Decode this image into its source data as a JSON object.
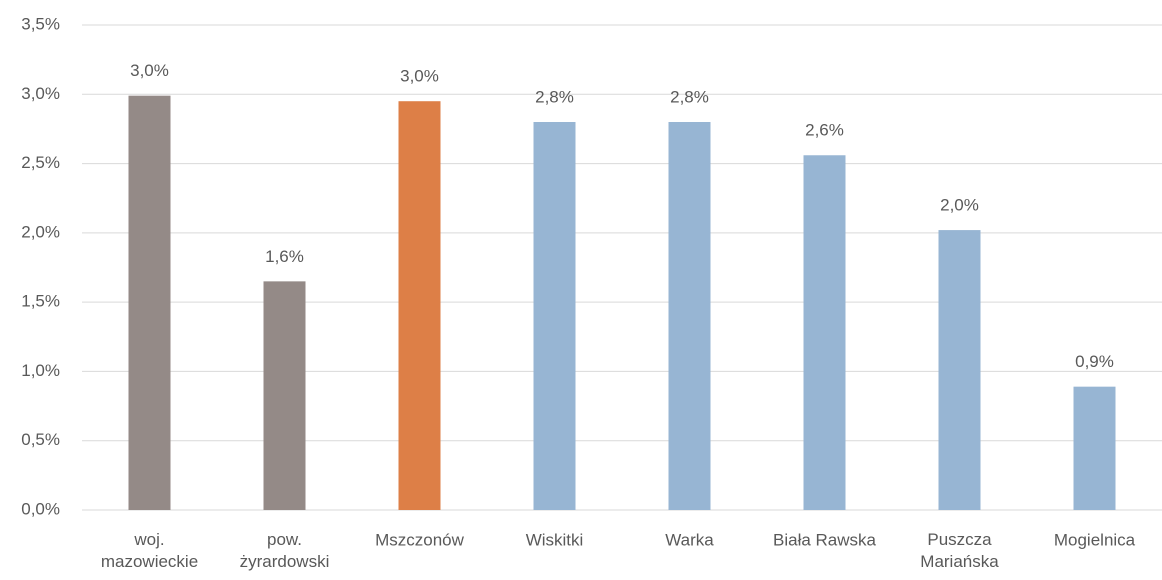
{
  "chart_data": {
    "type": "bar",
    "categories": [
      "woj.\nmazowieckie",
      "pow.\nżyrardowski",
      "Mszczonów",
      "Wiskitki",
      "Warka",
      "Biała Rawska",
      "Puszcza\nMariańska",
      "Mogielnica"
    ],
    "values": [
      2.99,
      1.65,
      2.95,
      2.8,
      2.8,
      2.56,
      2.02,
      0.89
    ],
    "value_labels": [
      "3,0%",
      "1,6%",
      "3,0%",
      "2,8%",
      "2,8%",
      "2,6%",
      "2,0%",
      "0,9%"
    ],
    "colors": [
      "#948a87",
      "#948a87",
      "#dd7f47",
      "#97b5d3",
      "#97b5d3",
      "#97b5d3",
      "#97b5d3",
      "#97b5d3"
    ],
    "ylim": [
      0,
      3.5
    ],
    "yticks": [
      {
        "value": 0,
        "label": "0,0%"
      },
      {
        "value": 0.5,
        "label": "0,5%"
      },
      {
        "value": 1,
        "label": "1,0%"
      },
      {
        "value": 1.5,
        "label": "1,5%"
      },
      {
        "value": 2,
        "label": "2,0%"
      },
      {
        "value": 2.5,
        "label": "2,5%"
      },
      {
        "value": 3,
        "label": "3,0%"
      },
      {
        "value": 3.5,
        "label": "3,5%"
      }
    ],
    "grid": true
  }
}
